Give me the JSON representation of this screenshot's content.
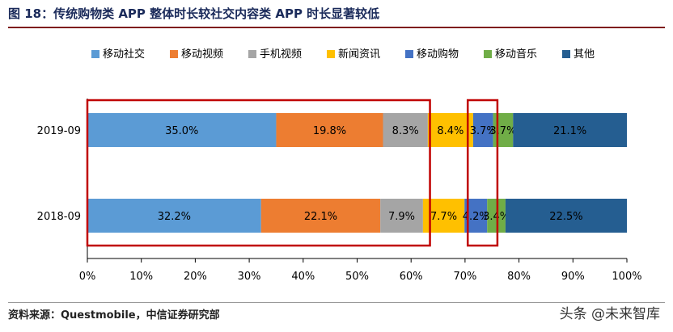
{
  "figure_title": "图 18：传统购物类 APP 整体时长较社交内容类 APP 时长显著较低",
  "source_note": "资料来源：Questmobile，中信证券研究部",
  "watermark": "头条 @未来智库",
  "colors": {
    "移动社交": "#5b9bd5",
    "移动视频": "#ed7d31",
    "手机视频": "#a5a5a5",
    "新闻资讯": "#ffc000",
    "移动购物": "#4472c4",
    "移动音乐": "#70ad47",
    "其他": "#255e91",
    "highlight_box": "#c00000"
  },
  "chart_data": {
    "type": "bar",
    "orientation": "horizontal",
    "stacked": true,
    "title": "",
    "xlabel": "",
    "ylabel": "",
    "xlim": [
      0,
      100
    ],
    "x_ticks": [
      "0%",
      "10%",
      "20%",
      "30%",
      "40%",
      "50%",
      "60%",
      "70%",
      "80%",
      "90%",
      "100%"
    ],
    "categories": [
      "2019-09",
      "2018-09"
    ],
    "legend_position": "top",
    "grid": false,
    "series": [
      {
        "name": "移动社交",
        "values": [
          35.0,
          32.2
        ],
        "labels": [
          "35.0%",
          "32.2%"
        ]
      },
      {
        "name": "移动视频",
        "values": [
          19.8,
          22.1
        ],
        "labels": [
          "19.8%",
          "22.1%"
        ]
      },
      {
        "name": "手机视频",
        "values": [
          8.3,
          7.9
        ],
        "labels": [
          "8.3%",
          "7.9%"
        ]
      },
      {
        "name": "新闻资讯",
        "values": [
          8.4,
          7.7
        ],
        "labels": [
          "8.4%",
          "7.7%"
        ]
      },
      {
        "name": "移动购物",
        "values": [
          3.7,
          4.2
        ],
        "labels": [
          "3.7%",
          "4.2%"
        ]
      },
      {
        "name": "移动音乐",
        "values": [
          3.7,
          3.4
        ],
        "labels": [
          "3.7%",
          "3.4%"
        ]
      },
      {
        "name": "其他",
        "values": [
          21.1,
          22.5
        ],
        "labels": [
          "21.1%",
          "22.5%"
        ]
      }
    ],
    "annotations": [
      {
        "type": "highlight_box",
        "x_range": [
          0,
          63.5
        ]
      },
      {
        "type": "highlight_box",
        "x_range": [
          70.5,
          76
        ]
      }
    ]
  }
}
